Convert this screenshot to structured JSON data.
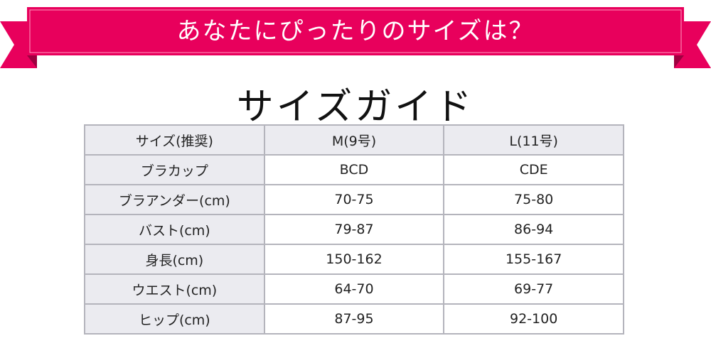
{
  "banner": {
    "title": "あなたにぴったりのサイズは？"
  },
  "heading": "サイズガイド",
  "table": {
    "header": [
      "サイズ(推奨)",
      "M(9号)",
      "L(11号)"
    ],
    "rows": [
      [
        "ブラカップ",
        "BCD",
        "CDE"
      ],
      [
        "ブラアンダー(cm)",
        "70-75",
        "75-80"
      ],
      [
        "バスト(cm)",
        "79-87",
        "86-94"
      ],
      [
        "身長(cm)",
        "150-162",
        "155-167"
      ],
      [
        "ウエスト(cm)",
        "64-70",
        "69-77"
      ],
      [
        "ヒップ(cm)",
        "87-95",
        "92-100"
      ]
    ]
  }
}
